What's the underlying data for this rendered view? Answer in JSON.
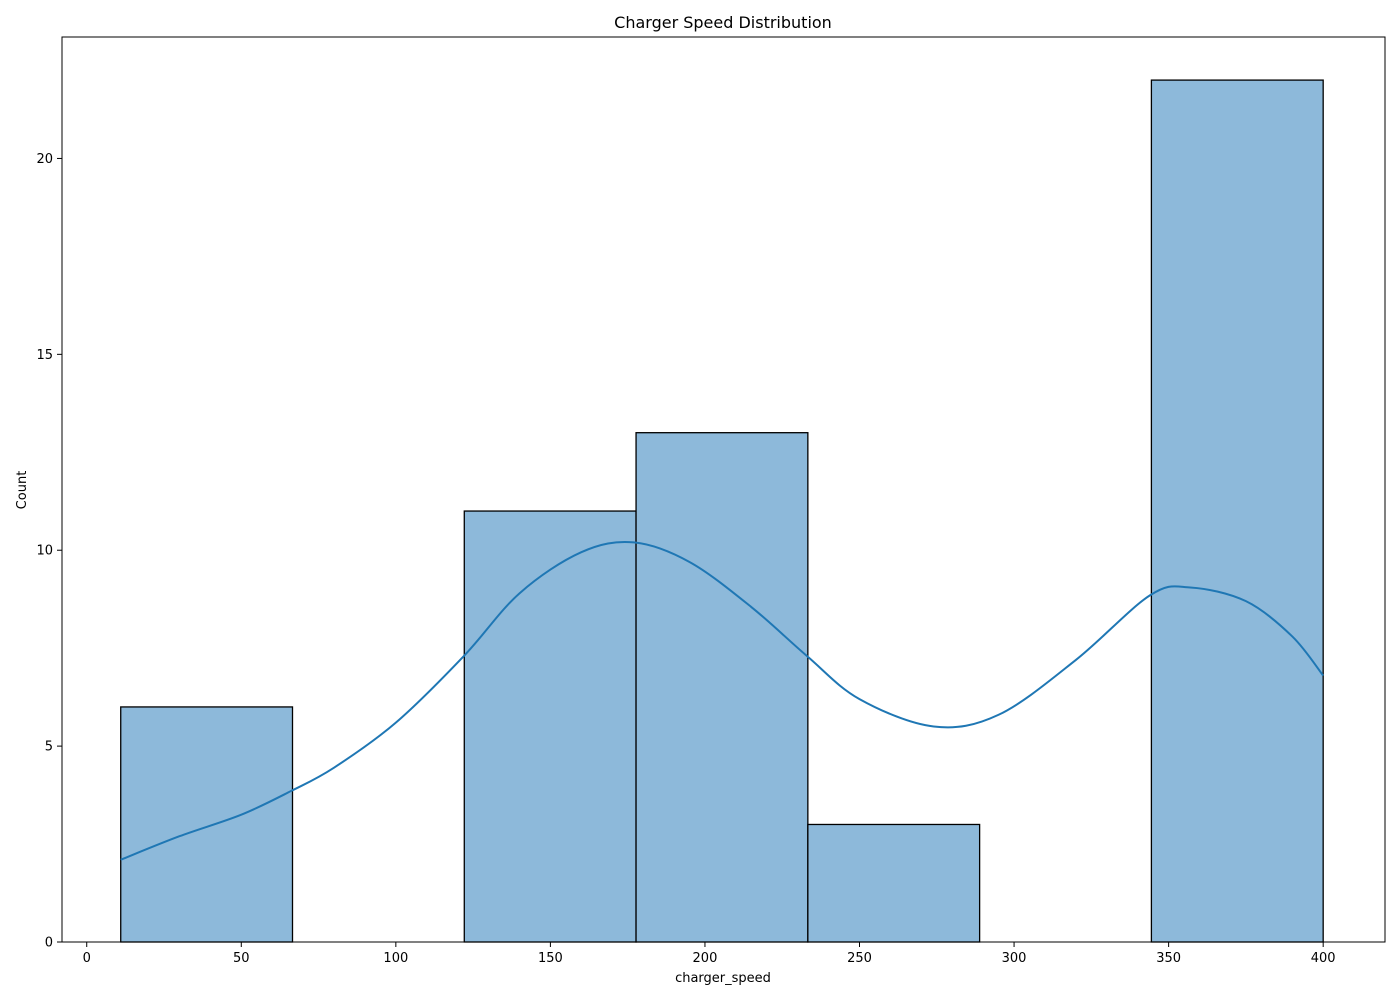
{
  "chart_data": {
    "type": "bar",
    "subtype": "histogram",
    "title": "Charger Speed Distribution",
    "xlabel": "charger_speed",
    "ylabel": "Count",
    "xlim": [
      -8,
      420
    ],
    "ylim": [
      0,
      23.1
    ],
    "xticks": [
      0,
      50,
      100,
      150,
      200,
      250,
      300,
      350,
      400
    ],
    "yticks": [
      0,
      5,
      10,
      15,
      20
    ],
    "grid": false,
    "bins": [
      {
        "x0": 11,
        "x1": 66.57,
        "count": 6
      },
      {
        "x0": 66.57,
        "x1": 122.14,
        "count": 0
      },
      {
        "x0": 122.14,
        "x1": 177.71,
        "count": 11
      },
      {
        "x0": 177.71,
        "x1": 233.29,
        "count": 13
      },
      {
        "x0": 233.29,
        "x1": 288.86,
        "count": 3
      },
      {
        "x0": 288.86,
        "x1": 344.43,
        "count": 0
      },
      {
        "x0": 344.43,
        "x1": 400,
        "count": 22
      }
    ],
    "kde": {
      "x": [
        11,
        30,
        50,
        66,
        80,
        100,
        122,
        140,
        160,
        177,
        195,
        215,
        233,
        250,
        274,
        295,
        320,
        344,
        357,
        375,
        390,
        400
      ],
      "y": [
        2.1,
        2.7,
        3.25,
        3.85,
        4.45,
        5.6,
        7.3,
        8.9,
        9.95,
        10.2,
        9.7,
        8.55,
        7.3,
        6.2,
        5.5,
        5.8,
        7.2,
        8.85,
        9.05,
        8.7,
        7.8,
        6.8
      ]
    },
    "colors": {
      "bar_fill": "#8db9da",
      "bar_edge": "#000000",
      "kde_line": "#1f77b4"
    }
  }
}
